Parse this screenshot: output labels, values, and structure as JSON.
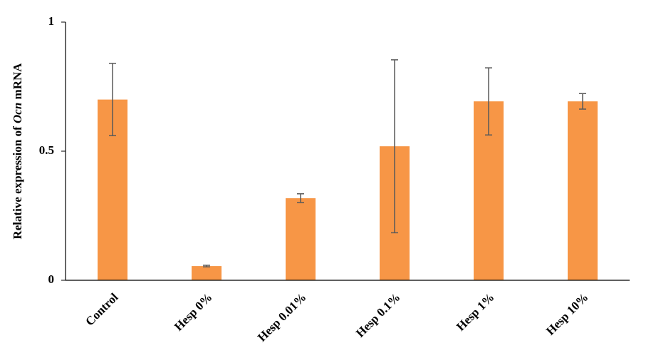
{
  "chart_data": {
    "type": "bar",
    "ylabel": [
      "Relative expression of ",
      "Ocn",
      " mRNA"
    ],
    "categories": [
      "Control",
      "Hesp 0%",
      "Hesp 0.01%",
      "Hesp 0.1%",
      "Hesp 1%",
      "Hesp 10%"
    ],
    "values": [
      0.7,
      0.055,
      0.318,
      0.519,
      0.693,
      0.693
    ],
    "errors": [
      0.14,
      0.003,
      0.017,
      0.335,
      0.13,
      0.03
    ],
    "color": "#f79646",
    "ylim": [
      0,
      1
    ],
    "yticks": [
      0,
      0.5,
      1
    ],
    "grid": false
  }
}
